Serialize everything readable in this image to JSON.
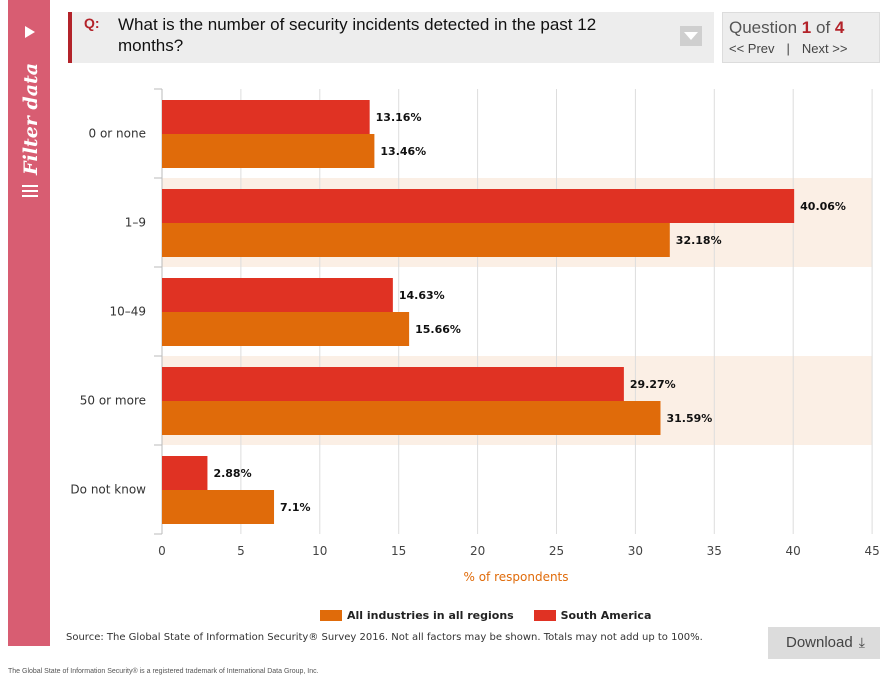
{
  "sidebar": {
    "label": "Filter data",
    "play_icon": "play-icon",
    "menu_icon": "hamburger-icon"
  },
  "question": {
    "prefix": "Q:",
    "text": "What is the number of security incidents detected in the past 12 months?",
    "dropdown_icon": "chevron-down-icon"
  },
  "nav": {
    "question_word": "Question",
    "current": "1",
    "of_word": "of",
    "total": "4",
    "prev": "<< Prev",
    "separator": "|",
    "next": "Next >>"
  },
  "chart_data": {
    "type": "bar",
    "orientation": "horizontal",
    "categories": [
      "0 or none",
      "1–9",
      "10–49",
      "50 or more",
      "Do not know"
    ],
    "series": [
      {
        "name": "South America",
        "color": "#e03223",
        "values": [
          13.16,
          40.06,
          14.63,
          29.27,
          2.88
        ],
        "labels": [
          "13.16%",
          "40.06%",
          "14.63%",
          "29.27%",
          "2.88%"
        ]
      },
      {
        "name": "All industries in all regions",
        "color": "#e06b0a",
        "values": [
          13.46,
          32.18,
          15.66,
          31.59,
          7.1
        ],
        "labels": [
          "13.46%",
          "32.18%",
          "15.66%",
          "31.59%",
          "7.1%"
        ]
      }
    ],
    "xlabel": "% of respondents",
    "xlim": [
      0,
      45
    ],
    "xticks": [
      0,
      5,
      10,
      15,
      20,
      25,
      30,
      35,
      40,
      45
    ],
    "grid": true,
    "legend_position": "bottom",
    "highlight_color": "#fbefe5"
  },
  "legend": {
    "item1": "All industries in all regions",
    "item1_color": "#e06b0a",
    "item2": "South America",
    "item2_color": "#e03223"
  },
  "source": "Source: The Global State of Information Security® Survey 2016. Not all factors may be shown. Totals may not add up to 100%.",
  "download": {
    "label": "Download",
    "icon": "download-icon"
  },
  "footer": "The Global State of Information Security® is a registered trademark of International Data Group, Inc."
}
